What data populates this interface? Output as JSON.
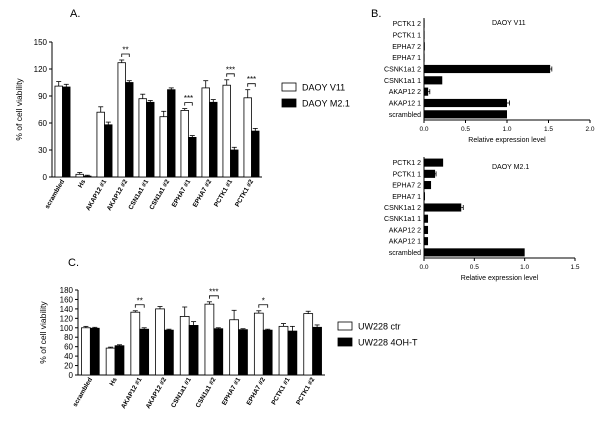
{
  "chart_data": [
    {
      "type": "bar",
      "panel_label": "A.",
      "ylabel": "% of cell viability",
      "ylim": [
        0,
        150
      ],
      "yticks": [
        0,
        30,
        60,
        90,
        120,
        150
      ],
      "categories": [
        "scrambled",
        "Hs",
        "AKAP12 #1",
        "AKAP12 #2",
        "CSN1a1 #1",
        "CSN1a1 #2",
        "EPHA7 #1",
        "EPHA7 #2",
        "PCTK1 #1",
        "PCTK1 #2"
      ],
      "series": [
        {
          "name": "DAOY V11",
          "color": "#ffffff",
          "values": [
            101,
            3,
            72,
            127,
            87,
            67,
            74,
            99,
            102,
            88
          ],
          "errors": [
            5,
            2,
            6,
            3,
            5,
            6,
            2,
            8,
            6,
            9
          ]
        },
        {
          "name": "DAOY M2.1",
          "color": "#000000",
          "values": [
            100,
            1,
            58,
            105,
            83,
            97,
            44,
            83,
            30,
            51
          ],
          "errors": [
            3,
            1,
            3,
            2,
            2,
            2,
            2,
            3,
            3,
            3
          ]
        }
      ],
      "significance": [
        {
          "category": "AKAP12 #2",
          "label": "**"
        },
        {
          "category": "EPHA7 #1",
          "label": "***"
        },
        {
          "category": "PCTK1 #1",
          "label": "***"
        },
        {
          "category": "PCTK1 #2",
          "label": "***"
        }
      ],
      "legend_position": "right"
    },
    {
      "type": "bar",
      "orientation": "horizontal",
      "panel_label": "B.",
      "title": "DAOY V11",
      "xlabel": "Relative expression level",
      "xlim": [
        0,
        2
      ],
      "xticks": [
        "0.0",
        "0.5",
        "1.0",
        "1.5",
        "2.0"
      ],
      "categories": [
        "scrambled",
        "AKAP12 1",
        "AKAP12 2",
        "CSNK1a1 1",
        "CSNK1a1 2",
        "EPHA7 1",
        "EPHA7 2",
        "PCTK1 1",
        "PCTK1 2"
      ],
      "values": [
        1.0,
        1.0,
        0.05,
        0.22,
        1.52,
        0.0,
        0.01,
        0.005,
        0.005
      ],
      "errors": [
        0,
        0.03,
        0.02,
        0,
        0.02,
        0,
        0,
        0,
        0
      ]
    },
    {
      "type": "bar",
      "orientation": "horizontal",
      "title": "DAOY M2.1",
      "xlabel": "Relative expression level",
      "xlim": [
        0,
        1.5
      ],
      "xticks": [
        "0.0",
        "0.5",
        "1.0",
        "1.5"
      ],
      "categories": [
        "scrambled",
        "AKAP12 1",
        "AKAP12 2",
        "CSNK1a1 1",
        "CSNK1a1 2",
        "EPHA7 1",
        "EPHA7 2",
        "PCTK1 1",
        "PCTK1 2"
      ],
      "values": [
        1.0,
        0.04,
        0.04,
        0.04,
        0.37,
        0.01,
        0.07,
        0.11,
        0.19
      ],
      "errors": [
        0,
        0,
        0,
        0,
        0.02,
        0,
        0,
        0.01,
        0
      ]
    },
    {
      "type": "bar",
      "panel_label": "C.",
      "ylabel": "% of cell viability",
      "ylim": [
        0,
        180
      ],
      "yticks": [
        0,
        20,
        40,
        60,
        80,
        100,
        120,
        140,
        160,
        180
      ],
      "categories": [
        "scrambled",
        "Hs",
        "AKAP12 #1",
        "AKAP12 #2",
        "CSN1a1 #1",
        "CSN1a1 #2",
        "EPHA7 #1",
        "EPHA7 #2",
        "PCTK1 #1",
        "PCTK1 #2"
      ],
      "series": [
        {
          "name": "UW228 ctr",
          "color": "#ffffff",
          "values": [
            100,
            57,
            133,
            140,
            124,
            150,
            117,
            131,
            103,
            130
          ],
          "errors": [
            3,
            2,
            3,
            5,
            20,
            5,
            20,
            5,
            6,
            5
          ]
        },
        {
          "name": "UW228 4OH-T",
          "color": "#000000",
          "values": [
            99,
            62,
            97,
            95,
            105,
            98,
            96,
            95,
            93,
            101
          ],
          "errors": [
            2,
            2,
            3,
            2,
            8,
            2,
            2,
            2,
            10,
            5
          ]
        }
      ],
      "significance": [
        {
          "category": "AKAP12 #1",
          "label": "**"
        },
        {
          "category": "CSN1a1 #2",
          "label": "***"
        },
        {
          "category": "EPHA7 #2",
          "label": "*"
        }
      ],
      "legend_position": "right"
    }
  ]
}
